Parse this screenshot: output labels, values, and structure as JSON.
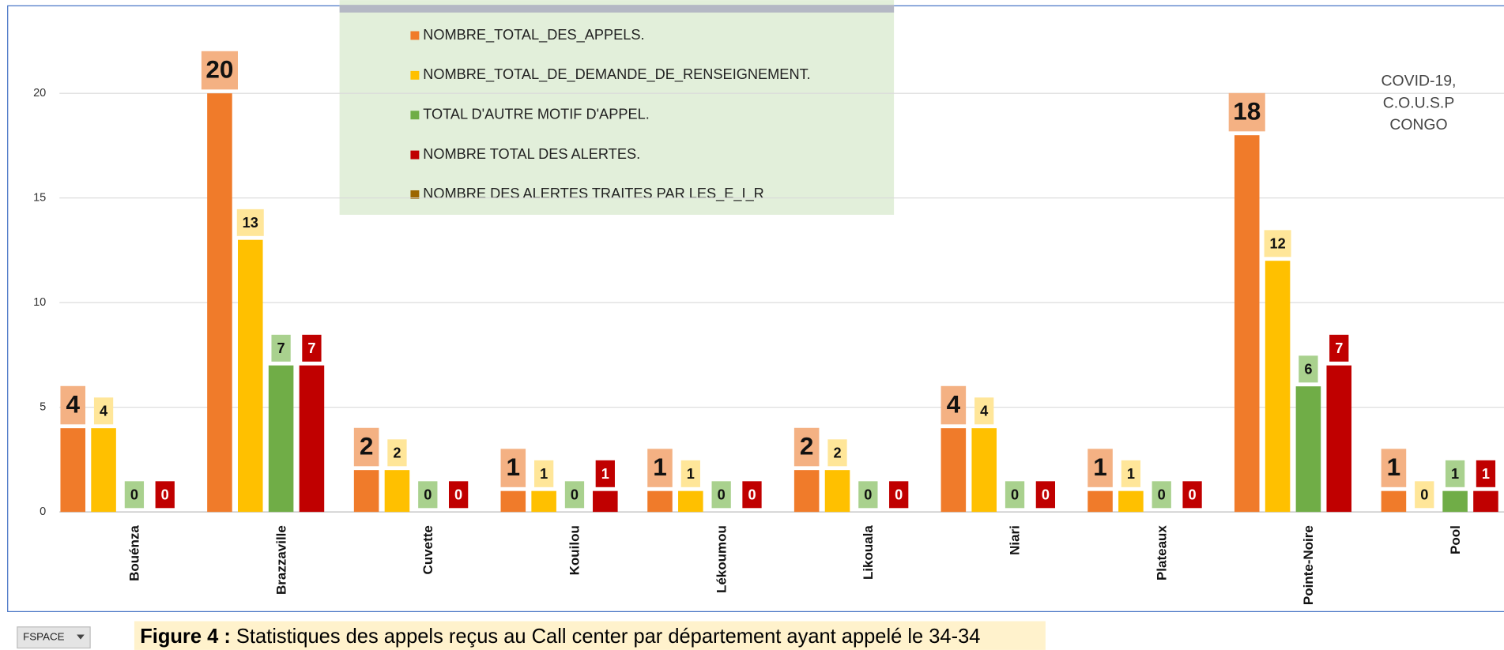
{
  "chart_data": {
    "type": "bar",
    "categories": [
      "Bouénza",
      "Brazzaville",
      "Cuvette",
      "Kouilou",
      "Lékoumou",
      "Likouala",
      "Niari",
      "Plateaux",
      "Pointe-Noire",
      "Pool"
    ],
    "series": [
      {
        "name": "NOMBRE_TOTAL_DES_APPELS.",
        "color": "#f07b2a",
        "label_color": "#f4b183",
        "values": [
          4,
          20,
          2,
          1,
          1,
          2,
          4,
          1,
          18,
          1
        ]
      },
      {
        "name": "NOMBRE_TOTAL_DE_DEMANDE_DE_RENSEIGNEMENT.",
        "color": "#ffc000",
        "label_color": "#ffe699",
        "values": [
          4,
          13,
          2,
          1,
          1,
          2,
          4,
          1,
          12,
          0
        ]
      },
      {
        "name": "TOTAL D'AUTRE MOTIF D'APPEL.",
        "color": "#70ad47",
        "label_color": "#a9d18e",
        "values": [
          0,
          7,
          0,
          0,
          0,
          0,
          0,
          0,
          6,
          1
        ]
      },
      {
        "name": "NOMBRE TOTAL DES ALERTES.",
        "color": "#c00000",
        "label_color": "#c00000",
        "values": [
          0,
          7,
          0,
          1,
          0,
          0,
          0,
          0,
          7,
          1
        ]
      },
      {
        "name": "NOMBRE DES ALERTES TRAITES PAR LES_E_I_R",
        "color": "#9c6500",
        "label_color": "#c9a35a",
        "values": [
          null,
          null,
          null,
          null,
          null,
          null,
          null,
          null,
          null,
          null
        ]
      }
    ],
    "ylim": [
      0,
      24
    ],
    "yticks": [
      0,
      5,
      10,
      15,
      20
    ],
    "grid": true,
    "legend": "top",
    "annotation": [
      "COVID-19,",
      "C.O.U.S.P",
      "CONGO"
    ]
  },
  "caption": {
    "label": "Figure 4 :",
    "text": " Statistiques des appels reçus au Call center par département ayant appelé le 34-34"
  },
  "toolbar_button": "FSPACE"
}
